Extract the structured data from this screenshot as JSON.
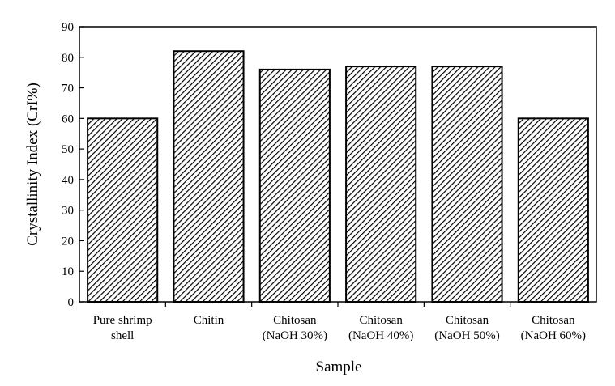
{
  "chart_data": {
    "type": "bar",
    "categories": [
      [
        "Pure shrimp",
        "shell"
      ],
      [
        "Chitin"
      ],
      [
        "Chitosan",
        "(NaOH 30%)"
      ],
      [
        "Chitosan",
        "(NaOH 40%)"
      ],
      [
        "Chitosan",
        "(NaOH 50%)"
      ],
      [
        "Chitosan",
        "(NaOH 60%)"
      ]
    ],
    "values": [
      60,
      82,
      76,
      77,
      77,
      60
    ],
    "xlabel": "Sample",
    "ylabel": "Crystallinity Index (CrI%)",
    "ylim": [
      0,
      90
    ],
    "yticks": [
      0,
      10,
      20,
      30,
      40,
      50,
      60,
      70,
      80,
      90
    ],
    "bar_fill": "hatched",
    "bar_color": "#000000",
    "grid": false,
    "legend": "none"
  }
}
